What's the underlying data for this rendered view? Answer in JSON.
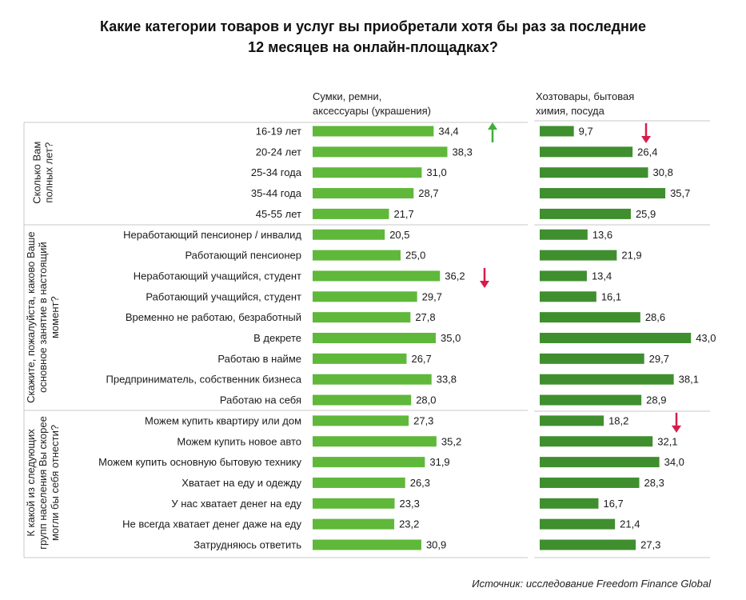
{
  "title_line1": "Какие категории товаров и услуг вы приобретали хотя бы раз за последние",
  "title_line2": "12 месяцев на онлайн-площадках?",
  "source": "Источник: исследование Freedom Finance Global",
  "colors": {
    "bar_light": "#5fb83a",
    "bar_dark": "#3f8f2f",
    "arrow_up": "#3fae3a",
    "arrow_down": "#d81b4a",
    "divider": "#c8c8c8"
  },
  "chart_data": {
    "type": "bar",
    "orientation": "horizontal",
    "series": [
      {
        "name": "Сумки, ремни, аксессуары (украшения)",
        "name_lines": [
          "Сумки, ремни,",
          "аксессуары (украшения)"
        ]
      },
      {
        "name": "Хозтовары, бытовая химия, посуда",
        "name_lines": [
          "Хозтовары, бытовая",
          "химия, посуда"
        ]
      }
    ],
    "groups": [
      {
        "question_lines": [
          "Сколько Вам",
          "полных лет?"
        ],
        "rows": [
          {
            "label": "16-19 лет",
            "values": [
              34.4,
              9.7
            ],
            "markers": [
              "up",
              "down"
            ]
          },
          {
            "label": "20-24 лет",
            "values": [
              38.3,
              26.4
            ],
            "markers": [
              null,
              null
            ]
          },
          {
            "label": "25-34 года",
            "values": [
              31.0,
              30.8
            ],
            "markers": [
              null,
              null
            ]
          },
          {
            "label": "35-44 года",
            "values": [
              28.7,
              35.7
            ],
            "markers": [
              null,
              null
            ]
          },
          {
            "label": "45-55 лет",
            "values": [
              21.7,
              25.9
            ],
            "markers": [
              null,
              null
            ]
          }
        ]
      },
      {
        "question_lines": [
          "Скажите, пожалуйста, каково Ваше",
          "основное занятие в настоящий",
          "момент?"
        ],
        "rows": [
          {
            "label": "Неработающий пенсионер / инвалид",
            "values": [
              20.5,
              13.6
            ],
            "markers": [
              null,
              null
            ]
          },
          {
            "label": "Работающий пенсионер",
            "values": [
              25.0,
              21.9
            ],
            "markers": [
              null,
              null
            ]
          },
          {
            "label": "Неработающий учащийся, студент",
            "values": [
              36.2,
              13.4
            ],
            "markers": [
              "down",
              null
            ]
          },
          {
            "label": "Работающий учащийся, студент",
            "values": [
              29.7,
              16.1
            ],
            "markers": [
              null,
              null
            ]
          },
          {
            "label": "Временно не работаю, безработный",
            "values": [
              27.8,
              28.6
            ],
            "markers": [
              null,
              null
            ]
          },
          {
            "label": "В декрете",
            "values": [
              35.0,
              43.0
            ],
            "markers": [
              null,
              null
            ]
          },
          {
            "label": "Работаю в найме",
            "values": [
              26.7,
              29.7
            ],
            "markers": [
              null,
              null
            ]
          },
          {
            "label": "Предприниматель, собственник бизнеса",
            "values": [
              33.8,
              38.1
            ],
            "markers": [
              null,
              null
            ]
          },
          {
            "label": "Работаю на себя",
            "values": [
              28.0,
              28.9
            ],
            "markers": [
              null,
              null
            ]
          }
        ]
      },
      {
        "question_lines": [
          "К какой из следующих",
          "групп населения Вы скорее",
          "могли бы себя отнести?"
        ],
        "rows": [
          {
            "label": "Можем купить квартиру или дом",
            "values": [
              27.3,
              18.2
            ],
            "markers": [
              null,
              "down"
            ]
          },
          {
            "label": "Можем купить новое авто",
            "values": [
              35.2,
              32.1
            ],
            "markers": [
              null,
              null
            ]
          },
          {
            "label": "Можем купить основную бытовую технику",
            "values": [
              31.9,
              34.0
            ],
            "markers": [
              null,
              null
            ]
          },
          {
            "label": "Хватает на еду и одежду",
            "values": [
              26.3,
              28.3
            ],
            "markers": [
              null,
              null
            ]
          },
          {
            "label": "У нас хватает денег на еду",
            "values": [
              23.3,
              16.7
            ],
            "markers": [
              null,
              null
            ]
          },
          {
            "label": "Не всегда хватает денег даже на еду",
            "values": [
              23.2,
              21.4
            ],
            "markers": [
              null,
              null
            ]
          },
          {
            "label": "Затрудняюсь ответить",
            "values": [
              30.9,
              27.3
            ],
            "markers": [
              null,
              null
            ]
          }
        ]
      }
    ]
  }
}
